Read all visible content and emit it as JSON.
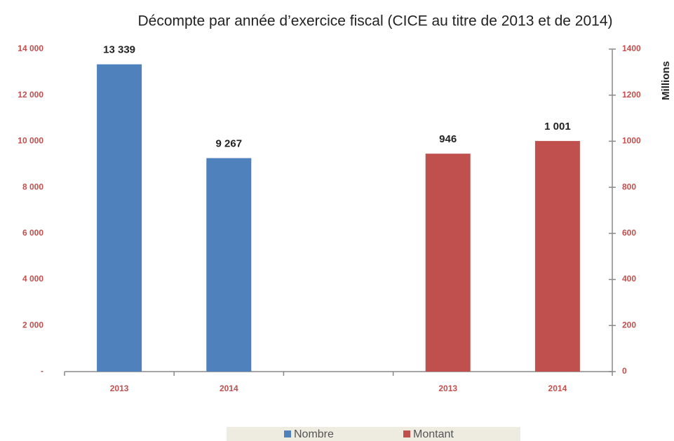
{
  "chart_data": {
    "type": "bar",
    "title": "Décompte par année d’exercice fiscal (CICE au titre de 2013 et de 2014)",
    "categories": [
      "2013",
      "2014",
      null,
      "2013",
      "2014"
    ],
    "series": [
      {
        "name": "Nombre",
        "color": "#4f81bd",
        "values": [
          13339,
          9267,
          null,
          null,
          null
        ],
        "value_labels": [
          "13 339",
          "9 267",
          null,
          null,
          null
        ]
      },
      {
        "name": "Montant",
        "color": "#c0504d",
        "axis": "y2",
        "values": [
          null,
          null,
          null,
          946,
          1001
        ],
        "value_labels": [
          null,
          null,
          null,
          "946",
          "1 001"
        ]
      }
    ],
    "ylim": [
      0,
      14000
    ],
    "yticks": [
      {
        "value": 0,
        "label": "-"
      },
      {
        "value": 2000,
        "label": "2 000"
      },
      {
        "value": 4000,
        "label": "4 000"
      },
      {
        "value": 6000,
        "label": "6 000"
      },
      {
        "value": 8000,
        "label": "8 000"
      },
      {
        "value": 10000,
        "label": "10 000"
      },
      {
        "value": 12000,
        "label": "12 000"
      },
      {
        "value": 14000,
        "label": "14 000"
      }
    ],
    "y2lim": [
      0,
      1400
    ],
    "y2ticks": [
      0,
      200,
      400,
      600,
      800,
      1000,
      1200,
      1400
    ],
    "y2label": "Millions",
    "legend": "bottom"
  }
}
